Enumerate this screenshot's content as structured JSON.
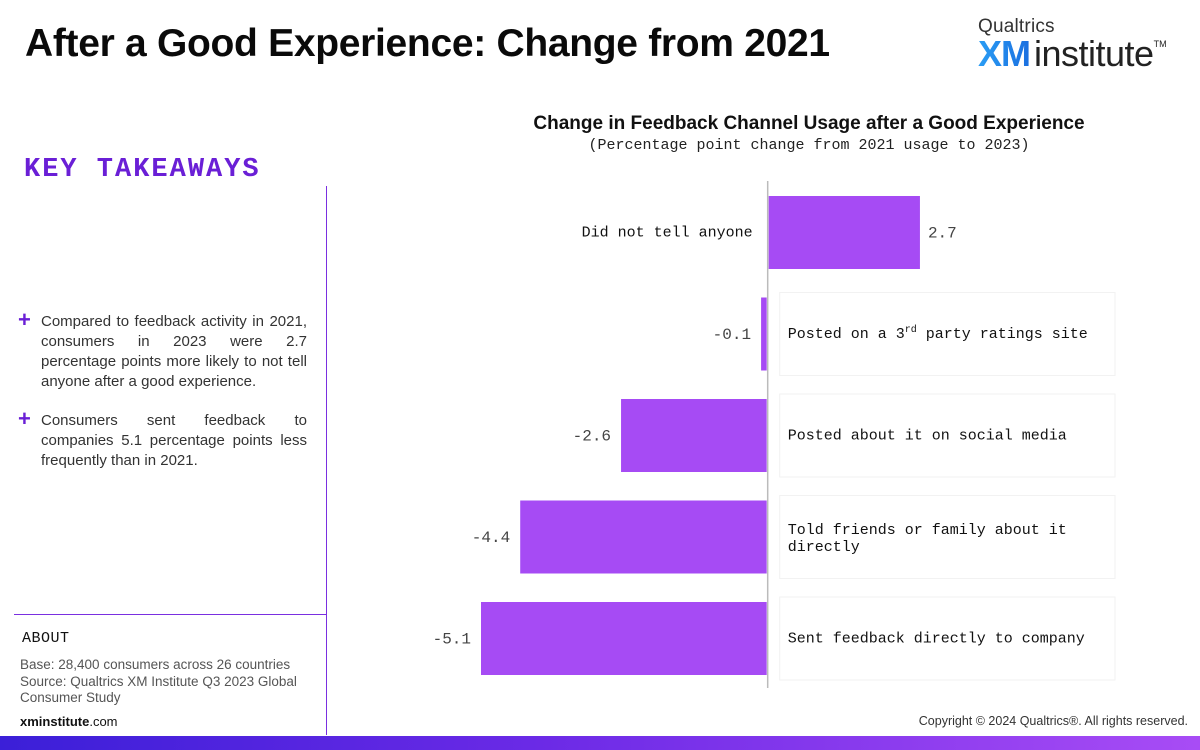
{
  "header": {
    "title": "After a Good Experience: Change from 2021",
    "logo_small": "Qualtrics",
    "logo_xm": "XM",
    "logo_institute": "institute",
    "logo_tm": "TM"
  },
  "takeaways": {
    "heading": "KEY TAKEAWAYS",
    "bullet_glyph": "+",
    "items": [
      "Compared to feedback activity in 2021, consumers in 2023 were 2.7 percentage points more likely to not tell anyone after a good experience.",
      "Consumers sent feedback to companies 5.1 percentage points less frequently than in 2021."
    ]
  },
  "about": {
    "heading": "ABOUT",
    "base": "Base: 28,400 consumers across 26 countries",
    "source": "Source: Qualtrics XM Institute Q3 2023 Global Consumer Study"
  },
  "footer": {
    "site_bold": "xminstitute",
    "site_rest": ".com",
    "copyright": "Copyright © 2024 Qualtrics®. All rights reserved."
  },
  "colors": {
    "bar": "#a64bf4",
    "accent": "#6a1fd6",
    "axis": "#bbbbbb"
  },
  "chart_data": {
    "type": "bar",
    "orientation": "horizontal",
    "title": "Change in Feedback Channel Usage after a Good Experience",
    "subtitle": "(Percentage point change from 2021 usage to 2023)",
    "categories": [
      "Did not tell anyone",
      "Posted on a 3rd party ratings site",
      "Posted about it on social media",
      "Told friends or family about it directly",
      "Sent feedback directly to company"
    ],
    "category_parts": [
      [
        "Did not tell anyone"
      ],
      [
        "Posted on a 3",
        "rd",
        " party ratings site"
      ],
      [
        "Posted about it on social media"
      ],
      [
        "Told friends or family about it",
        "directly"
      ],
      [
        "Sent feedback directly to company"
      ]
    ],
    "values": [
      2.7,
      -0.1,
      -2.6,
      -4.4,
      -5.1
    ],
    "value_labels": [
      "2.7",
      "-0.1",
      "-2.6",
      "-4.4",
      "-5.1"
    ],
    "xlim": [
      -5.1,
      6.2
    ],
    "xlabel": "",
    "ylabel": "",
    "grid": false,
    "legend": "none"
  }
}
